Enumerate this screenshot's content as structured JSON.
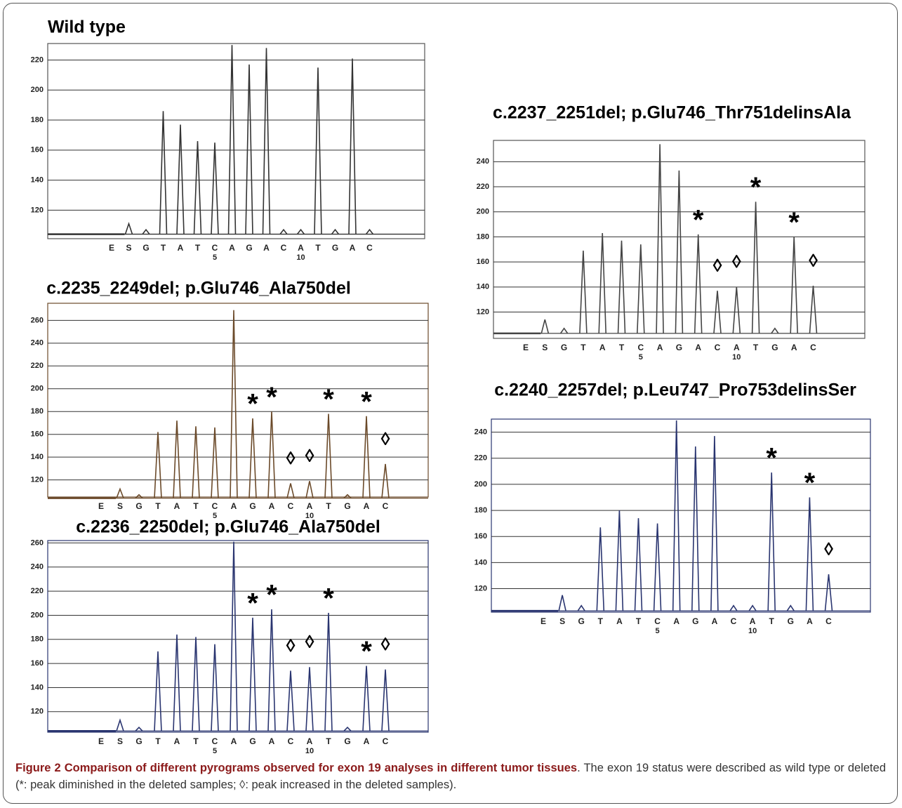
{
  "chart_data": [
    {
      "type": "pyrogram",
      "title": "Wild type",
      "color": "#333333",
      "grid": true,
      "categories": [
        "E",
        "S",
        "G",
        "T",
        "A",
        "T",
        "C",
        "A",
        "G",
        "A",
        "C",
        "A",
        "T",
        "G",
        "A",
        "C"
      ],
      "position_labels": [
        null,
        null,
        null,
        null,
        null,
        null,
        5,
        null,
        null,
        null,
        null,
        10,
        null,
        null,
        null,
        null
      ],
      "values": [
        104,
        111,
        107,
        186,
        177,
        166,
        165,
        230,
        217,
        228,
        107,
        107,
        215,
        107,
        221,
        107
      ],
      "peak_marks": [
        null,
        null,
        null,
        null,
        null,
        null,
        null,
        null,
        null,
        null,
        null,
        null,
        null,
        null,
        null,
        null
      ],
      "ylim": [
        101,
        231
      ],
      "yticks": [
        120,
        140,
        160,
        180,
        200,
        220
      ]
    },
    {
      "type": "pyrogram",
      "title": "c.2235_2249del; p.Glu746_Ala750del",
      "color": "#6b4a2a",
      "grid": true,
      "categories": [
        "E",
        "S",
        "G",
        "T",
        "A",
        "T",
        "C",
        "A",
        "G",
        "A",
        "C",
        "A",
        "T",
        "G",
        "A",
        "C"
      ],
      "position_labels": [
        null,
        null,
        null,
        null,
        null,
        null,
        5,
        null,
        null,
        null,
        null,
        10,
        null,
        null,
        null,
        null
      ],
      "values": [
        104,
        112,
        107,
        162,
        172,
        167,
        166,
        269,
        174,
        180,
        117,
        119,
        178,
        107,
        176,
        134
      ],
      "peak_marks": [
        null,
        null,
        null,
        null,
        null,
        null,
        null,
        null,
        "*",
        "*",
        "◊",
        "◊",
        "*",
        null,
        "*",
        "◊"
      ],
      "ylim": [
        105,
        275
      ],
      "yticks": [
        120,
        140,
        160,
        180,
        200,
        220,
        240,
        260
      ]
    },
    {
      "type": "pyrogram",
      "title": "c.2236_2250del; p.Glu746_Ala750del",
      "color": "#2a3570",
      "grid": true,
      "categories": [
        "E",
        "S",
        "G",
        "T",
        "A",
        "T",
        "C",
        "A",
        "G",
        "A",
        "C",
        "A",
        "T",
        "G",
        "A",
        "C"
      ],
      "position_labels": [
        null,
        null,
        null,
        null,
        null,
        null,
        5,
        null,
        null,
        null,
        null,
        10,
        null,
        null,
        null,
        null
      ],
      "values": [
        104,
        113,
        107,
        170,
        184,
        182,
        176,
        261,
        198,
        205,
        154,
        157,
        202,
        107,
        158,
        155
      ],
      "peak_marks": [
        null,
        null,
        null,
        null,
        null,
        null,
        null,
        null,
        "*",
        "*",
        "◊",
        "◊",
        "*",
        null,
        "*",
        "◊"
      ],
      "ylim": [
        103,
        262
      ],
      "yticks": [
        120,
        140,
        160,
        180,
        200,
        220,
        240,
        260
      ]
    },
    {
      "type": "pyrogram",
      "title": "c.2237_2251del; p.Glu746_Thr751delinsAla",
      "color": "#444444",
      "grid": true,
      "categories": [
        "E",
        "S",
        "G",
        "T",
        "A",
        "T",
        "C",
        "A",
        "G",
        "A",
        "C",
        "A",
        "T",
        "G",
        "A",
        "C"
      ],
      "position_labels": [
        null,
        null,
        null,
        null,
        null,
        null,
        5,
        null,
        null,
        null,
        null,
        10,
        null,
        null,
        null,
        null
      ],
      "values": [
        103,
        114,
        107,
        169,
        183,
        177,
        174,
        254,
        233,
        182,
        137,
        140,
        208,
        107,
        180,
        141
      ],
      "peak_marks": [
        null,
        null,
        null,
        null,
        null,
        null,
        null,
        null,
        null,
        "*",
        "◊",
        "◊",
        "*",
        null,
        "*",
        "◊"
      ],
      "ylim": [
        99,
        257
      ],
      "yticks": [
        120,
        140,
        160,
        180,
        200,
        220,
        240
      ]
    },
    {
      "type": "pyrogram",
      "title": "c.2240_2257del; p.Leu747_Pro753delinsSer",
      "color": "#2a3570",
      "grid": true,
      "categories": [
        "E",
        "S",
        "G",
        "T",
        "A",
        "T",
        "C",
        "A",
        "G",
        "A",
        "C",
        "A",
        "T",
        "G",
        "A",
        "C"
      ],
      "position_labels": [
        null,
        null,
        null,
        null,
        null,
        null,
        5,
        null,
        null,
        null,
        null,
        10,
        null,
        null,
        null,
        null
      ],
      "values": [
        103,
        115,
        107,
        167,
        180,
        174,
        170,
        249,
        229,
        237,
        107,
        107,
        209,
        107,
        190,
        131
      ],
      "peak_marks": [
        null,
        null,
        null,
        null,
        null,
        null,
        null,
        null,
        null,
        null,
        null,
        null,
        "*",
        null,
        "*",
        "◊"
      ],
      "ylim": [
        102,
        250
      ],
      "yticks": [
        120,
        140,
        160,
        180,
        200,
        220,
        240
      ]
    }
  ],
  "caption": {
    "label": "Figure 2 Comparison of different pyrograms observed for exon 19 analyses in different tumor tissues",
    "text": ". The exon 19 status were described as wild type or deleted (*: peak diminished in the deleted samples; ◊: peak increased in the deleted samples)."
  }
}
